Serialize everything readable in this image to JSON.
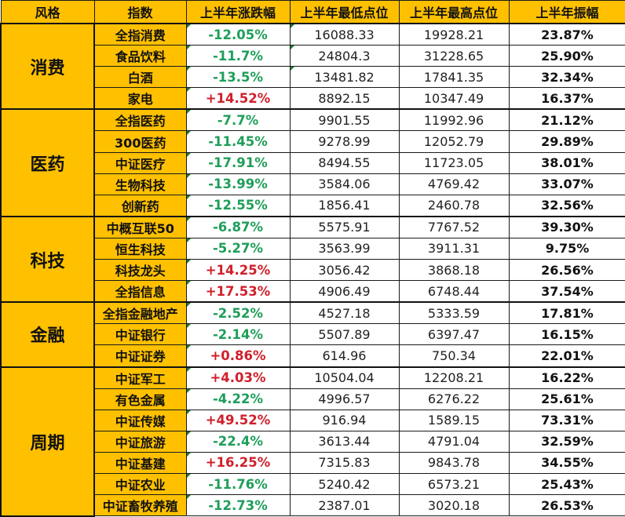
{
  "table": {
    "headers": [
      "风格",
      "指数",
      "上半年涨跌幅",
      "上半年最低点位",
      "上半年最高点位",
      "上半年振幅"
    ],
    "groups": [
      {
        "style": "消费",
        "rows": [
          {
            "index": "全指消费",
            "change": "-12.05%",
            "low": "16088.33",
            "high": "19928.21",
            "amplitude": "23.87%"
          },
          {
            "index": "食品饮料",
            "change": "-11.7%",
            "low": "24804.3",
            "high": "31228.65",
            "amplitude": "25.90%"
          },
          {
            "index": "白酒",
            "change": "-13.5%",
            "low": "13481.82",
            "high": "17841.35",
            "amplitude": "32.34%"
          },
          {
            "index": "家电",
            "change": "+14.52%",
            "low": "8892.15",
            "high": "10347.49",
            "amplitude": "16.37%"
          }
        ]
      },
      {
        "style": "医药",
        "rows": [
          {
            "index": "全指医药",
            "change": "-7.7%",
            "low": "9901.55",
            "high": "11992.96",
            "amplitude": "21.12%"
          },
          {
            "index": "300医药",
            "change": "-11.45%",
            "low": "9278.99",
            "high": "12052.79",
            "amplitude": "29.89%"
          },
          {
            "index": "中证医疗",
            "change": "-17.91%",
            "low": "8494.55",
            "high": "11723.05",
            "amplitude": "38.01%"
          },
          {
            "index": "生物科技",
            "change": "-13.99%",
            "low": "3584.06",
            "high": "4769.42",
            "amplitude": "33.07%"
          },
          {
            "index": "创新药",
            "change": "-12.55%",
            "low": "1856.41",
            "high": "2460.78",
            "amplitude": "32.56%"
          }
        ]
      },
      {
        "style": "科技",
        "rows": [
          {
            "index": "中概互联50",
            "change": "-6.87%",
            "low": "5575.91",
            "high": "7767.52",
            "amplitude": "39.30%"
          },
          {
            "index": "恒生科技",
            "change": "-5.27%",
            "low": "3563.99",
            "high": "3911.31",
            "amplitude": "9.75%"
          },
          {
            "index": "科技龙头",
            "change": "+14.25%",
            "low": "3056.42",
            "high": "3868.18",
            "amplitude": "26.56%"
          },
          {
            "index": "全指信息",
            "change": "+17.53%",
            "low": "4906.49",
            "high": "6748.44",
            "amplitude": "37.54%"
          }
        ]
      },
      {
        "style": "金融",
        "rows": [
          {
            "index": "全指金融地产",
            "change": "-2.52%",
            "low": "4527.18",
            "high": "5333.59",
            "amplitude": "17.81%"
          },
          {
            "index": "中证银行",
            "change": "-2.14%",
            "low": "5507.89",
            "high": "6397.47",
            "amplitude": "16.15%"
          },
          {
            "index": "中证证券",
            "change": "+0.86%",
            "low": "614.96",
            "high": "750.34",
            "amplitude": "22.01%"
          }
        ]
      },
      {
        "style": "周期",
        "rows": [
          {
            "index": "中证军工",
            "change": "+4.03%",
            "low": "10504.04",
            "high": "12208.21",
            "amplitude": "16.22%"
          },
          {
            "index": "有色金属",
            "change": "-4.22%",
            "low": "4996.57",
            "high": "6276.22",
            "amplitude": "25.61%"
          },
          {
            "index": "中证传媒",
            "change": "+49.52%",
            "low": "916.94",
            "high": "1589.15",
            "amplitude": "73.31%"
          },
          {
            "index": "中证旅游",
            "change": "-22.4%",
            "low": "3613.44",
            "high": "4791.04",
            "amplitude": "32.59%"
          },
          {
            "index": "中证基建",
            "change": "+16.25%",
            "low": "7315.83",
            "high": "9843.78",
            "amplitude": "34.55%"
          },
          {
            "index": "中证农业",
            "change": "-11.76%",
            "low": "5240.42",
            "high": "6573.21",
            "amplitude": "25.43%"
          },
          {
            "index": "中证畜牧养殖",
            "change": "-12.73%",
            "low": "2387.01",
            "high": "3020.18",
            "amplitude": "26.53%"
          }
        ]
      }
    ]
  },
  "colors": {
    "header_bg": "#FFC000",
    "label_bg": "#FFC000",
    "negative": "#1E9E5A",
    "positive": "#D0202B",
    "border": "#1a1a1a"
  }
}
